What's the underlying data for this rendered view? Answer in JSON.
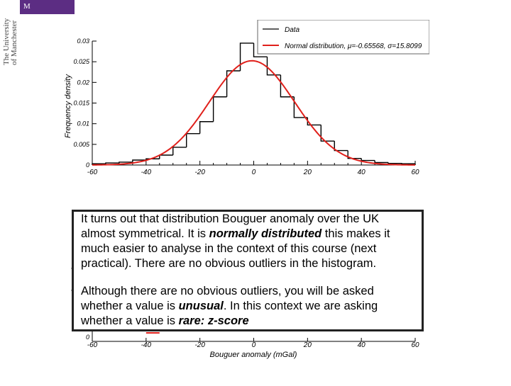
{
  "logo": {
    "badge": "M",
    "lines": [
      "The University",
      "of Manchester"
    ]
  },
  "chart_data": {
    "type": "bar",
    "title": "",
    "xlabel": "Bouguer anomaly (mGal)",
    "ylabel": "Frequency density",
    "xlim": [
      -60,
      60
    ],
    "ylim": [
      0,
      0.03
    ],
    "x_ticks": [
      -60,
      -40,
      -20,
      0,
      20,
      40,
      60
    ],
    "y_ticks": [
      0,
      0.005,
      0.01,
      0.015,
      0.02,
      0.025,
      0.03
    ],
    "y_tick_labels": [
      "0",
      "0.005",
      "0.01",
      "0.015",
      "0.02",
      "0.025",
      "0.03"
    ],
    "bin_edges": [
      -60,
      -55,
      -50,
      -45,
      -40,
      -35,
      -30,
      -25,
      -20,
      -15,
      -10,
      -5,
      0,
      5,
      10,
      15,
      20,
      25,
      30,
      35,
      40,
      45,
      50,
      55,
      60
    ],
    "histogram": [
      0.0003,
      0.0005,
      0.0007,
      0.0012,
      0.0015,
      0.0024,
      0.0043,
      0.0076,
      0.0105,
      0.0165,
      0.0228,
      0.0295,
      0.0262,
      0.0218,
      0.0165,
      0.0115,
      0.0097,
      0.0058,
      0.0035,
      0.0016,
      0.0011,
      0.0006,
      0.0004,
      0.0003
    ],
    "normal_fit": {
      "mu": -0.65568,
      "sigma": 15.8099
    },
    "legend": [
      {
        "label": "Data",
        "color": "#000000"
      },
      {
        "label": "Normal distribution, μ=-0.65568, σ=15.8099",
        "color": "#e0201b"
      }
    ],
    "legend_position": "top-right",
    "grid": false
  },
  "callout": {
    "p1_a": "It turns out that distribution Bouguer anomaly over the UK almost symmetrical. It is ",
    "p1_em": "normally distributed",
    "p1_b": " this makes it much easier to analyse in the context of this course (next practical). There are no obvious outliers in the histogram.",
    "p2_a": "Although there are no obvious outliers, you will be asked whether a value is ",
    "p2_em1": "unusual",
    "p2_b": ". In this context we are asking whether a value is ",
    "p2_em2": "rare: z-score"
  },
  "colors": {
    "data": "#000000",
    "fit": "#e0201b",
    "brand": "#5c2d83"
  }
}
